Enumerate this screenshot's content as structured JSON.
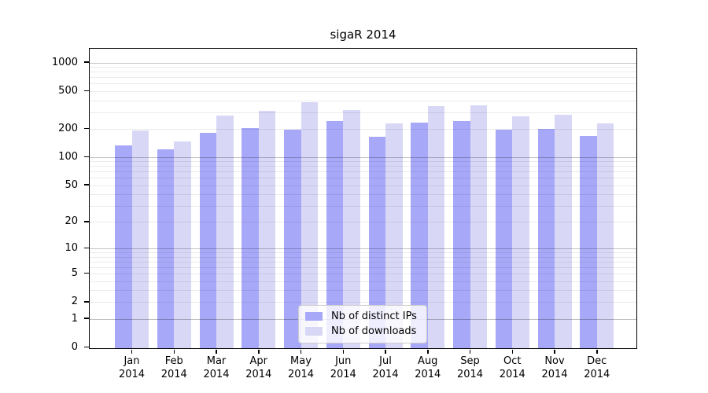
{
  "title": "sigaR 2014",
  "chart_data": {
    "type": "bar",
    "title": "sigaR 2014",
    "y_scale": "log1p",
    "ylim": [
      0,
      1400
    ],
    "grid": true,
    "legend_position": "lower center",
    "categories": [
      "Jan",
      "Feb",
      "Mar",
      "Apr",
      "May",
      "Jun",
      "Jul",
      "Aug",
      "Sep",
      "Oct",
      "Nov",
      "Dec"
    ],
    "year_label": "2014",
    "y_ticks": [
      0,
      1,
      2,
      5,
      10,
      20,
      50,
      100,
      200,
      500,
      1000
    ],
    "y_minor_gridlines": [
      3,
      4,
      6,
      7,
      8,
      9,
      30,
      40,
      60,
      70,
      80,
      90,
      300,
      400,
      600,
      700,
      800,
      900
    ],
    "y_major_gridlines": [
      1,
      10,
      100,
      1000
    ],
    "series": [
      {
        "name": "Nb of distinct IPs",
        "color": "#a8a8f9",
        "values": [
          136,
          124,
          183,
          205,
          200,
          247,
          166,
          234,
          246,
          197,
          201,
          170
        ]
      },
      {
        "name": "Nb of downloads",
        "color": "#d8d8f6",
        "values": [
          195,
          150,
          283,
          317,
          385,
          318,
          230,
          355,
          360,
          274,
          288,
          231
        ]
      }
    ],
    "colors": {
      "bar_distinct_ips": "#a8a8f9",
      "bar_downloads": "#d8d8f6",
      "grid_minor": "#ededed",
      "grid_major": "#c2c2c2",
      "axis": "#000000",
      "background": "#ffffff"
    }
  }
}
